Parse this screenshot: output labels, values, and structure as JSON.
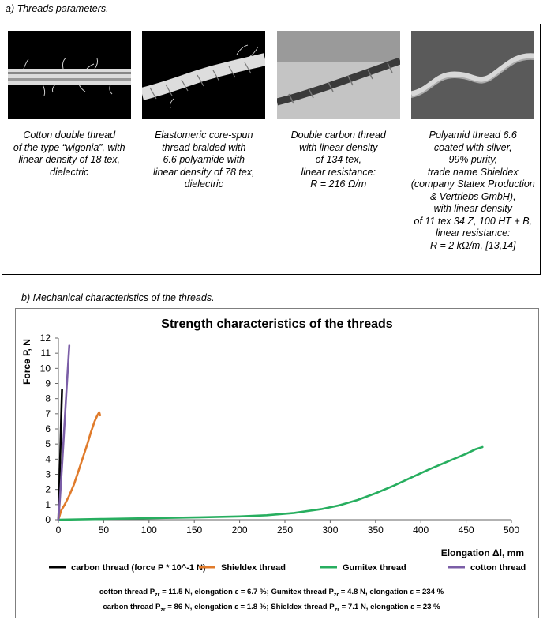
{
  "section_a_label": "a)  Threads parameters.",
  "section_b_label": "b)  Mechanical characteristics of the threads.",
  "threads": [
    {
      "image": "cotton-double-thread-photo",
      "desc": [
        "Cotton double thread",
        "of the type “wigonia”, with",
        "linear density of 18 tex,",
        "dielectric"
      ]
    },
    {
      "image": "elastomeric-core-spun-thread-photo",
      "desc": [
        "Elastomeric core-spun",
        "thread braided with",
        "6.6 polyamide with",
        "linear density of 78 tex,",
        "dielectric"
      ]
    },
    {
      "image": "double-carbon-thread-photo",
      "desc": [
        "Double carbon thread",
        "with linear density",
        "of 134 tex,",
        "linear resistance:",
        "R = 216 Ω/m"
      ]
    },
    {
      "image": "silver-coated-polyamid-thread-photo",
      "desc": [
        "Polyamid thread 6.6",
        "coated with silver,",
        "99% purity,",
        "trade name Shieldex",
        "(company Statex Production",
        "& Vertriebs GmbH),",
        "with linear density",
        "of 11 tex 34 Z, 100 HT + B,",
        "linear resistance:",
        "R = 2 kΩ/m, [13,14]"
      ]
    }
  ],
  "chart_data": {
    "type": "line",
    "title": "Strength characteristics of the threads",
    "xlabel": "Elongation  Δl,  mm",
    "ylabel": "Force  P,  N",
    "xlim": [
      0,
      500
    ],
    "ylim": [
      0,
      12
    ],
    "x_ticks": [
      0,
      50,
      100,
      150,
      200,
      250,
      300,
      350,
      400,
      450,
      500
    ],
    "y_ticks": [
      0,
      1,
      2,
      3,
      4,
      5,
      6,
      7,
      8,
      9,
      10,
      11,
      12
    ],
    "grid": false,
    "legend_position": "bottom",
    "series": [
      {
        "name": "carbon thread (force P * 10^-1 N)",
        "color": "#000000",
        "x": [
          0,
          0.5,
          1,
          1.5,
          2,
          2.5,
          3,
          3.5,
          4
        ],
        "y": [
          0,
          1.0,
          2.0,
          3.1,
          4.2,
          5.4,
          6.5,
          7.6,
          8.6
        ]
      },
      {
        "name": "Shieldex thread",
        "color": "#e07b2b",
        "x": [
          0,
          3,
          7,
          12,
          17,
          22,
          27,
          32,
          36,
          40,
          43,
          45,
          46
        ],
        "y": [
          0,
          0.6,
          1.0,
          1.6,
          2.3,
          3.2,
          4.1,
          5.0,
          5.8,
          6.5,
          6.9,
          7.1,
          6.9
        ]
      },
      {
        "name": "Gumitex thread",
        "color": "#27ae5f",
        "x": [
          0,
          50,
          100,
          150,
          200,
          230,
          260,
          290,
          310,
          330,
          350,
          370,
          390,
          410,
          430,
          450,
          460,
          468
        ],
        "y": [
          0,
          0.05,
          0.1,
          0.15,
          0.22,
          0.3,
          0.45,
          0.7,
          0.95,
          1.3,
          1.75,
          2.25,
          2.8,
          3.35,
          3.85,
          4.35,
          4.65,
          4.8
        ]
      },
      {
        "name": "cotton thread",
        "color": "#7b5ea7",
        "x": [
          0,
          1.5,
          3,
          4.5,
          6,
          7.5,
          9,
          10.5,
          12
        ],
        "y": [
          0,
          1.2,
          2.6,
          4.1,
          5.6,
          7.1,
          8.6,
          10.1,
          11.5
        ]
      }
    ]
  },
  "summary_line1": [
    "cotton thread P",
    "zr",
    " = 11.5 N, elongation ε = 6.7 %; Gumitex thread P",
    "zr",
    " = 4.8 N, elongation ε = 234 %"
  ],
  "summary_line2": [
    "carbon thread P",
    "zr",
    " = 86 N, elongation ε = 1.8 %; Shieldex thread P",
    "zr",
    " = 7.1 N, elongation ε = 23 %"
  ]
}
